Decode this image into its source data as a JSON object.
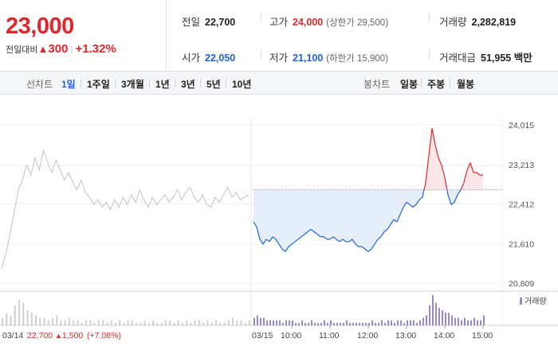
{
  "header": {
    "current_price": "23,000",
    "change_label": "전일대비",
    "change_arrow": "▲",
    "change_value": "300",
    "change_pct": "+1.32%",
    "prev_close_label": "전일",
    "prev_close": "22,700",
    "open_label": "시가",
    "open": "22,050",
    "high_label": "고가",
    "high": "24,000",
    "upper_limit": "(상한가 29,500)",
    "low_label": "저가",
    "low": "21,100",
    "lower_limit": "(하한가 15,900)",
    "volume_label": "거래량",
    "volume": "2,282,819",
    "amount_label": "거래대금",
    "amount": "51,955 백만"
  },
  "toolbar": {
    "line_chart_label": "선차트",
    "periods": [
      "1일",
      "1주일",
      "3개월",
      "1년",
      "3년",
      "5년",
      "10년"
    ],
    "active_period": "1일",
    "candle_chart_label": "봉차트",
    "candles": [
      "일봉",
      "주봉",
      "월봉"
    ]
  },
  "colors": {
    "up": "#e0262b",
    "down": "#1f62d8",
    "grey_line": "#c2c2c2",
    "volume": "#9c87c7"
  },
  "chart_data": {
    "type": "line",
    "y_ticks": [
      "24,015",
      "23,213",
      "22,412",
      "21,610",
      "20,809"
    ],
    "ylim": [
      20809,
      24015
    ],
    "baseline": 22700,
    "x_ticks": [
      "10:00",
      "11:00",
      "12:00",
      "13:00",
      "14:00",
      "15:00"
    ],
    "prev_day_label": "03/14",
    "prev_day_price": "22,700",
    "prev_day_arrow": "▲",
    "prev_day_change": "1,500",
    "prev_day_pct": "(+7.08%)",
    "today_label": "03/15",
    "volume_legend": "거래량",
    "prev_series": {
      "name": "03/14",
      "points": [
        [
          0,
          21100
        ],
        [
          1,
          21400
        ],
        [
          2,
          21800
        ],
        [
          3,
          22250
        ],
        [
          4,
          22700
        ],
        [
          5,
          22900
        ],
        [
          6,
          23200
        ],
        [
          7,
          23000
        ],
        [
          8,
          23350
        ],
        [
          9,
          23100
        ],
        [
          10,
          23500
        ],
        [
          11,
          23250
        ],
        [
          12,
          23050
        ],
        [
          13,
          23300
        ],
        [
          14,
          23100
        ],
        [
          15,
          22900
        ],
        [
          16,
          23050
        ],
        [
          17,
          22850
        ],
        [
          18,
          22700
        ],
        [
          19,
          22900
        ],
        [
          20,
          22650
        ],
        [
          21,
          22550
        ],
        [
          22,
          22400
        ],
        [
          23,
          22500
        ],
        [
          24,
          22350
        ],
        [
          25,
          22450
        ],
        [
          26,
          22300
        ],
        [
          27,
          22500
        ],
        [
          28,
          22350
        ],
        [
          29,
          22550
        ],
        [
          30,
          22400
        ],
        [
          31,
          22600
        ],
        [
          32,
          22450
        ],
        [
          33,
          22700
        ],
        [
          34,
          22500
        ],
        [
          35,
          22350
        ],
        [
          36,
          22550
        ],
        [
          37,
          22400
        ],
        [
          38,
          22500
        ],
        [
          39,
          22600
        ],
        [
          40,
          22450
        ],
        [
          41,
          22550
        ],
        [
          42,
          22700
        ],
        [
          43,
          22500
        ],
        [
          44,
          22650
        ],
        [
          45,
          22750
        ],
        [
          46,
          22550
        ],
        [
          47,
          22450
        ],
        [
          48,
          22600
        ],
        [
          49,
          22400
        ],
        [
          50,
          22350
        ],
        [
          51,
          22550
        ],
        [
          52,
          22450
        ],
        [
          53,
          22600
        ],
        [
          54,
          22750
        ],
        [
          55,
          22550
        ],
        [
          56,
          22650
        ],
        [
          57,
          22500
        ],
        [
          58,
          22550
        ],
        [
          59,
          22600
        ]
      ]
    },
    "today_series": {
      "name": "03/15",
      "points": [
        [
          "09:00",
          22050
        ],
        [
          "09:05",
          21950
        ],
        [
          "09:10",
          21700
        ],
        [
          "09:15",
          21600
        ],
        [
          "09:20",
          21700
        ],
        [
          "09:25",
          21650
        ],
        [
          "09:30",
          21750
        ],
        [
          "09:35",
          21700
        ],
        [
          "09:40",
          21600
        ],
        [
          "09:45",
          21500
        ],
        [
          "09:50",
          21450
        ],
        [
          "09:55",
          21550
        ],
        [
          "10:00",
          21600
        ],
        [
          "10:05",
          21650
        ],
        [
          "10:10",
          21700
        ],
        [
          "10:15",
          21750
        ],
        [
          "10:20",
          21800
        ],
        [
          "10:25",
          21850
        ],
        [
          "10:30",
          21900
        ],
        [
          "10:35",
          21850
        ],
        [
          "10:40",
          21800
        ],
        [
          "10:45",
          21750
        ],
        [
          "10:50",
          21750
        ],
        [
          "10:55",
          21700
        ],
        [
          "11:00",
          21700
        ],
        [
          "11:05",
          21750
        ],
        [
          "11:10",
          21700
        ],
        [
          "11:15",
          21650
        ],
        [
          "11:20",
          21700
        ],
        [
          "11:25",
          21650
        ],
        [
          "11:30",
          21650
        ],
        [
          "11:35",
          21700
        ],
        [
          "11:40",
          21600
        ],
        [
          "11:45",
          21550
        ],
        [
          "11:50",
          21550
        ],
        [
          "11:55",
          21500
        ],
        [
          "12:00",
          21450
        ],
        [
          "12:05",
          21500
        ],
        [
          "12:10",
          21600
        ],
        [
          "12:15",
          21700
        ],
        [
          "12:20",
          21750
        ],
        [
          "12:25",
          21850
        ],
        [
          "12:30",
          21900
        ],
        [
          "12:35",
          22000
        ],
        [
          "12:40",
          22100
        ],
        [
          "12:45",
          22050
        ],
        [
          "12:50",
          22200
        ],
        [
          "12:55",
          22350
        ],
        [
          "13:00",
          22450
        ],
        [
          "13:05",
          22400
        ],
        [
          "13:10",
          22350
        ],
        [
          "13:15",
          22400
        ],
        [
          "13:20",
          22500
        ],
        [
          "13:25",
          22550
        ],
        [
          "13:30",
          22850
        ],
        [
          "13:35",
          23400
        ],
        [
          "13:40",
          23950
        ],
        [
          "13:45",
          23600
        ],
        [
          "13:50",
          23350
        ],
        [
          "13:55",
          23200
        ],
        [
          "14:00",
          22950
        ],
        [
          "14:05",
          22600
        ],
        [
          "14:10",
          22400
        ],
        [
          "14:15",
          22450
        ],
        [
          "14:20",
          22600
        ],
        [
          "14:25",
          22700
        ],
        [
          "14:30",
          22850
        ],
        [
          "14:35",
          23100
        ],
        [
          "14:40",
          23250
        ],
        [
          "14:45",
          23050
        ],
        [
          "14:50",
          23050
        ],
        [
          "14:55",
          23000
        ],
        [
          "15:00",
          23000
        ]
      ]
    },
    "prev_volume": [
      3,
      5,
      4,
      8,
      10,
      9,
      6,
      5,
      4,
      3,
      3,
      2,
      3,
      4,
      2,
      2,
      3,
      2,
      2,
      1,
      2,
      2,
      1,
      2,
      2,
      1,
      2,
      1,
      2,
      1,
      2,
      2,
      1,
      1,
      2,
      1,
      2,
      1,
      1,
      2,
      2,
      1,
      2,
      1,
      2,
      1,
      2,
      2,
      1,
      2,
      1,
      2,
      1,
      1,
      2,
      3,
      2,
      2,
      1,
      2
    ],
    "today_volume": [
      3,
      4,
      3,
      3,
      2,
      2,
      2,
      2,
      2,
      1,
      2,
      2,
      2,
      1,
      1,
      2,
      1,
      1,
      2,
      1,
      1,
      1,
      2,
      1,
      2,
      1,
      1,
      1,
      1,
      2,
      1,
      1,
      1,
      1,
      1,
      1,
      1,
      2,
      1,
      1,
      2,
      1,
      2,
      2,
      1,
      2,
      2,
      1,
      2,
      2,
      2,
      1,
      2,
      3,
      4,
      8,
      12,
      9,
      7,
      6,
      5,
      5,
      4,
      3,
      3,
      2,
      3,
      2,
      2,
      3,
      2,
      2,
      4
    ]
  }
}
